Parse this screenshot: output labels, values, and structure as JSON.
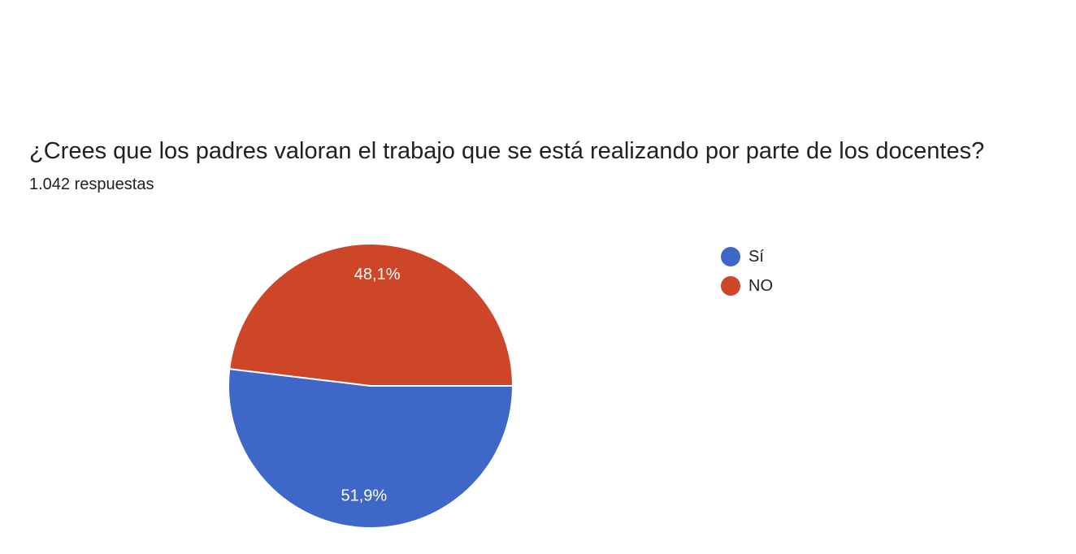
{
  "question": {
    "title": "¿Crees que los padres valoran el trabajo que se está realizando por parte de los docentes?",
    "response_count": "1.042 respuestas"
  },
  "legend": {
    "items": [
      {
        "label": "Sí",
        "color": "#3e67c8"
      },
      {
        "label": "NO",
        "color": "#cc4627"
      }
    ]
  },
  "chart_data": {
    "type": "pie",
    "title": "",
    "categories": [
      "Sí",
      "NO"
    ],
    "values": [
      51.9,
      48.1
    ],
    "labels": [
      "51,9%",
      "48,1%"
    ],
    "colors": [
      "#3e67c8",
      "#cc4627"
    ],
    "legend_position": "right"
  }
}
